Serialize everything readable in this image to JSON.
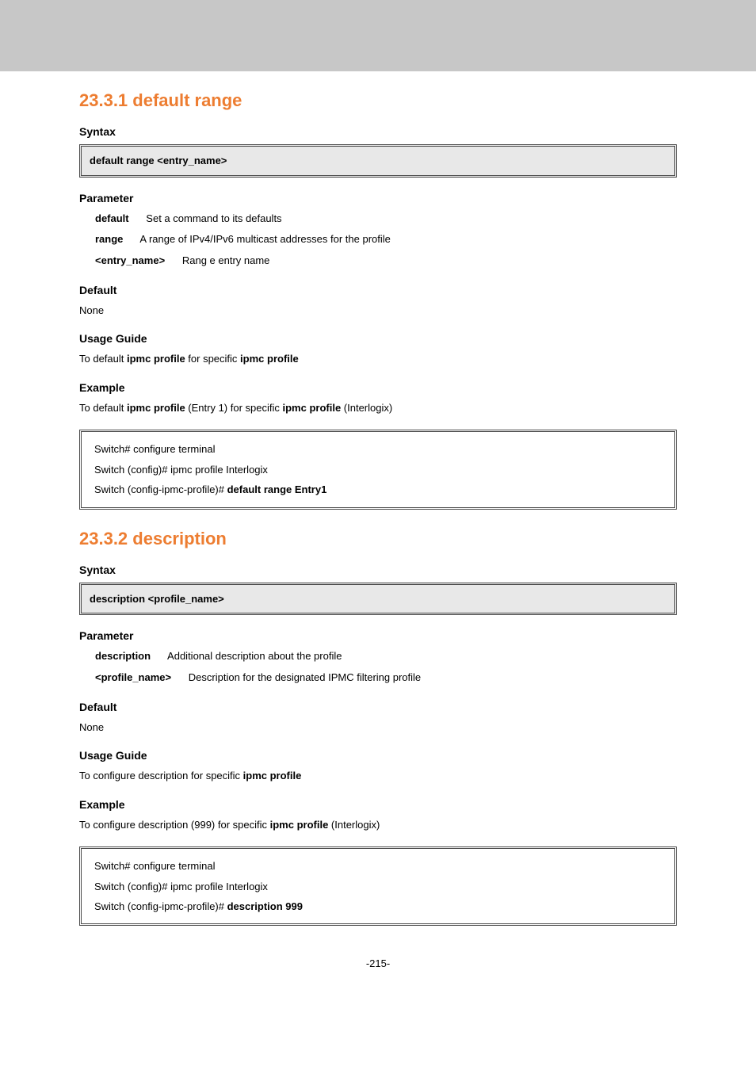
{
  "colors": {
    "header_bg": "#c7c7c7",
    "section_title": "#ed7d31",
    "box_border": "#4a4a4a",
    "syntax_bg": "#e8e8e8"
  },
  "sec1": {
    "title": "23.3.1 default range",
    "syntax_label": "Syntax",
    "syntax": "default range <entry_name>",
    "parameter_label": "Parameter",
    "params": [
      {
        "key": "default",
        "desc": "Set a command to its defaults"
      },
      {
        "key": "range",
        "desc": "A range of IPv4/IPv6 multicast addresses for the profile"
      },
      {
        "key": "<entry_name>",
        "desc": "Rang e entry name"
      }
    ],
    "default_label": "Default",
    "default_body": "None",
    "usage_label": "Usage Guide",
    "usage_pre": "To default ",
    "usage_bold": "ipmc profile",
    "usage_mid": " for specific ",
    "usage_bold2": "ipmc profile",
    "example_label": "Example",
    "ex_pre": "To default ",
    "ex_bold1": "ipmc profile",
    "ex_mid1": " (Entry 1) for specific ",
    "ex_bold2": "ipmc profile",
    "ex_post": " (Interlogix)",
    "example_lines": [
      "Switch# configure terminal",
      "Switch (config)# ipmc profile Interlogix",
      "Switch (config-ipmc-profile)#"
    ],
    "example_tail": " default range Entry1"
  },
  "sec2": {
    "title": "23.3.2 description",
    "syntax_label": "Syntax",
    "syntax": "description <profile_name>",
    "parameter_label": "Parameter",
    "params": [
      {
        "key": "description",
        "desc": "Additional description about the profile"
      },
      {
        "key": "<profile_name>",
        "desc": "Description for the designated IPMC filtering profile"
      }
    ],
    "default_label": "Default",
    "default_body": "None",
    "usage_label": "Usage Guide",
    "usage_pre": "To configure description for specific ",
    "usage_bold": "ipmc profile",
    "example_label": "Example",
    "ex_pre": "To configure description (999) for specific ",
    "ex_bold": "ipmc profile",
    "ex_post": " (Interlogix)",
    "example_lines": [
      "Switch# configure terminal",
      "Switch (config)# ipmc profile Interlogix",
      "Switch (config-ipmc-profile)#"
    ],
    "example_tail": " description 999"
  },
  "page_number": "-215-"
}
